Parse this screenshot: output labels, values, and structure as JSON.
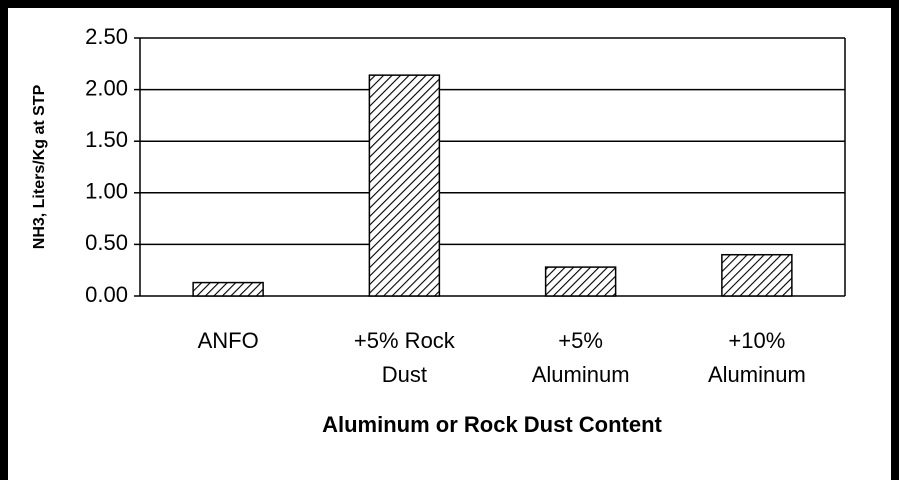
{
  "chart_data": {
    "type": "bar",
    "categories": [
      "ANFO",
      "+5% Rock\nDust",
      "+5%\nAluminum",
      "+10%\nAluminum"
    ],
    "values": [
      0.13,
      2.14,
      0.28,
      0.4
    ],
    "color": "#000000",
    "hatch": true,
    "xlabel": "Aluminum or Rock Dust Content",
    "ylabel": "NH3, Liters/Kg at STP",
    "ylim": [
      0,
      2.5
    ],
    "yticks": [
      {
        "value": 0,
        "label": "0.00"
      },
      {
        "value": 0.5,
        "label": "0.50"
      },
      {
        "value": 1,
        "label": "1.00"
      },
      {
        "value": 1.5,
        "label": "1.50"
      },
      {
        "value": 2,
        "label": "2.00"
      },
      {
        "value": 2.5,
        "label": "2.50"
      }
    ],
    "grid": true
  }
}
